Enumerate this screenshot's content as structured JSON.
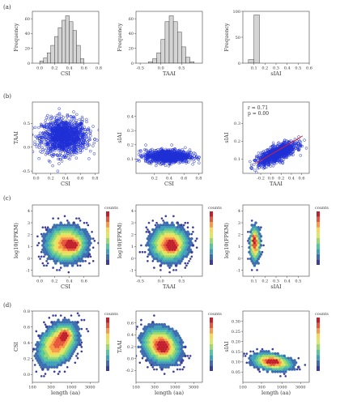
{
  "figure": {
    "panel_labels": [
      "(a)",
      "(b)",
      "(c)",
      "(d)"
    ],
    "colorbar_label": "counts"
  },
  "palette": [
    "#3b3f9a",
    "#3d6cb0",
    "#3fa0b8",
    "#59c59b",
    "#9bd86f",
    "#d9e866",
    "#f8d65a",
    "#f79a48",
    "#e6563a",
    "#c21f2d"
  ],
  "chart_data": [
    {
      "panel": "(a)",
      "type": "histogram",
      "xlabel": "CSI",
      "ylabel": "Frequency",
      "xlim": [
        -0.1,
        0.8
      ],
      "x_ticks": [
        "0.0",
        "0.2",
        "0.4",
        "0.6",
        "0.8"
      ],
      "bin_start": 0.0,
      "bin_width": 0.05,
      "counts": [
        3,
        7,
        14,
        24,
        36,
        48,
        58,
        64,
        56,
        44,
        24,
        6
      ],
      "ylim": [
        0,
        70
      ],
      "y_ticks": [
        "0",
        "20",
        "40",
        "60"
      ]
    },
    {
      "panel": "(a)",
      "type": "histogram",
      "xlabel": "TAAI",
      "ylabel": "Frequency",
      "xlim": [
        -0.6,
        1.0
      ],
      "x_ticks": [
        "-0.5",
        "0.0",
        "0.5"
      ],
      "bin_start": -0.3,
      "bin_width": 0.1,
      "counts": [
        2,
        6,
        14,
        32,
        56,
        64,
        56,
        42,
        22,
        8,
        2
      ],
      "ylim": [
        0,
        70
      ],
      "y_ticks": [
        "0",
        "20",
        "40",
        "60"
      ]
    },
    {
      "panel": "(a)",
      "type": "histogram",
      "xlabel": "sIAI",
      "ylabel": "Frequency",
      "xlim": [
        0.0,
        0.6
      ],
      "x_ticks": [
        "0.1",
        "0.2",
        "0.3",
        "0.4",
        "0.5",
        "0.6"
      ],
      "bin_start": 0.05,
      "bin_width": 0.05,
      "counts": [
        7,
        93,
        0,
        0,
        0,
        0,
        0,
        0,
        0,
        0
      ],
      "ylim": [
        0,
        100
      ],
      "y_ticks": [
        "0",
        "50",
        "100"
      ]
    },
    {
      "panel": "(b)",
      "type": "scatter",
      "xlabel": "CSI",
      "ylabel": "TAAI",
      "xlim": [
        -0.05,
        0.85
      ],
      "ylim": [
        -0.55,
        0.95
      ],
      "x_ticks": [
        "0.0",
        "0.2",
        "0.4",
        "0.6",
        "0.8"
      ],
      "y_ticks": [
        "-0.5",
        "0.0",
        "0.5"
      ],
      "cloud": {
        "mx": 0.38,
        "my": 0.22,
        "sx": 0.15,
        "sy": 0.18,
        "n": 1400,
        "r": 0.0
      }
    },
    {
      "panel": "(b)",
      "type": "scatter",
      "xlabel": "CSI",
      "ylabel": "sIAI",
      "xlim": [
        -0.05,
        0.85
      ],
      "ylim": [
        0.0,
        0.5
      ],
      "x_ticks": [
        "0.2",
        "0.4",
        "0.6",
        "0.8"
      ],
      "y_ticks": [
        "0.1",
        "0.2",
        "0.3",
        "0.4"
      ],
      "cloud": {
        "mx": 0.38,
        "my": 0.12,
        "sx": 0.15,
        "sy": 0.022,
        "n": 1100,
        "r": 0.0
      }
    },
    {
      "panel": "(b)",
      "type": "scatter",
      "xlabel": "TAAI",
      "ylabel": "sIAI",
      "xlim": [
        -0.55,
        0.75
      ],
      "ylim": [
        0.02,
        0.42
      ],
      "x_ticks": [
        "-0.2",
        "0.0",
        "0.2",
        "0.4",
        "0.6"
      ],
      "y_ticks": [
        "0.1",
        "0.2",
        "0.3"
      ],
      "cloud": {
        "mx": 0.12,
        "my": 0.13,
        "sx": 0.18,
        "sy": 0.03,
        "n": 1100,
        "r": 0.71
      },
      "fit_line": {
        "x": [
          -0.3,
          0.62
        ],
        "y": [
          0.075,
          0.23
        ]
      },
      "annotation": [
        "r = 0.71",
        "p = 0.00"
      ]
    },
    {
      "panel": "(c)",
      "type": "hexbin",
      "xlabel": "CSI",
      "ylabel": "log10(FPKM)",
      "xlim": [
        -0.1,
        0.8
      ],
      "ylim": [
        -1.5,
        4.5
      ],
      "x_ticks": [
        "0.0",
        "0.2",
        "0.4",
        "0.6"
      ],
      "y_ticks": [
        "-1",
        "0",
        "1",
        "2",
        "3",
        "4"
      ],
      "density": {
        "mx": 0.36,
        "my": 1.2,
        "sx": 0.16,
        "sy": 0.85,
        "r": 0.0,
        "hot": [
          0.46,
          1.1
        ]
      }
    },
    {
      "panel": "(c)",
      "type": "hexbin",
      "xlabel": "TAAI",
      "ylabel": "log10(FPKM)",
      "xlim": [
        -0.6,
        1.0
      ],
      "ylim": [
        -1.5,
        4.5
      ],
      "x_ticks": [
        "-0.5",
        "0.0",
        "0.5"
      ],
      "y_ticks": [
        "-1",
        "0",
        "1",
        "2",
        "3",
        "4"
      ],
      "density": {
        "mx": 0.2,
        "my": 1.2,
        "sx": 0.26,
        "sy": 0.85,
        "r": 0.0,
        "hot": [
          0.28,
          1.0
        ]
      }
    },
    {
      "panel": "(c)",
      "type": "hexbin",
      "xlabel": "sIAI",
      "ylabel": "log10(FPKM)",
      "xlim": [
        0.0,
        0.6
      ],
      "ylim": [
        -1.5,
        4.5
      ],
      "x_ticks": [
        "0.1",
        "0.2",
        "0.3",
        "0.4",
        "0.5"
      ],
      "y_ticks": [
        "-1",
        "0",
        "1",
        "2",
        "3",
        "4"
      ],
      "density": {
        "mx": 0.11,
        "my": 1.2,
        "sx": 0.028,
        "sy": 0.85,
        "r": 0.0,
        "hot": [
          0.1,
          1.6
        ]
      }
    },
    {
      "panel": "(d)",
      "type": "hexbin",
      "xlabel": "length (aa)",
      "ylabel": "CSI",
      "xlim": [
        2.0,
        3.7
      ],
      "ylim": [
        -0.1,
        0.8
      ],
      "x_ticks": [
        "100",
        "300",
        "1000",
        "3000"
      ],
      "y_ticks": [
        "0.0",
        "0.2",
        "0.4",
        "0.6",
        "0.8"
      ],
      "density": {
        "mx": 2.65,
        "my": 0.38,
        "sx": 0.28,
        "sy": 0.15,
        "r": 0.35,
        "hot": [
          2.85,
          0.5
        ]
      }
    },
    {
      "panel": "(d)",
      "type": "hexbin",
      "xlabel": "length (aa)",
      "ylabel": "TAAI",
      "xlim": [
        2.0,
        3.7
      ],
      "ylim": [
        -0.4,
        0.8
      ],
      "x_ticks": [
        "100",
        "300",
        "1000",
        "3000"
      ],
      "y_ticks": [
        "-0.2",
        "0.0",
        "0.2",
        "0.4",
        "0.6"
      ],
      "density": {
        "mx": 2.65,
        "my": 0.22,
        "sx": 0.28,
        "sy": 0.18,
        "r": -0.2,
        "hot": [
          2.7,
          0.2
        ]
      }
    },
    {
      "panel": "(d)",
      "type": "hexbin",
      "xlabel": "length (aa)",
      "ylabel": "sIAI",
      "xlim": [
        2.0,
        3.7
      ],
      "ylim": [
        0.0,
        0.35
      ],
      "x_ticks": [
        "100",
        "300",
        "1000",
        "3000"
      ],
      "y_ticks": [
        "0.05",
        "0.10",
        "0.15",
        "0.20",
        "0.25",
        "0.30"
      ],
      "density": {
        "mx": 2.75,
        "my": 0.1,
        "sx": 0.3,
        "sy": 0.025,
        "r": -0.3,
        "hot": [
          2.75,
          0.1
        ]
      }
    }
  ]
}
